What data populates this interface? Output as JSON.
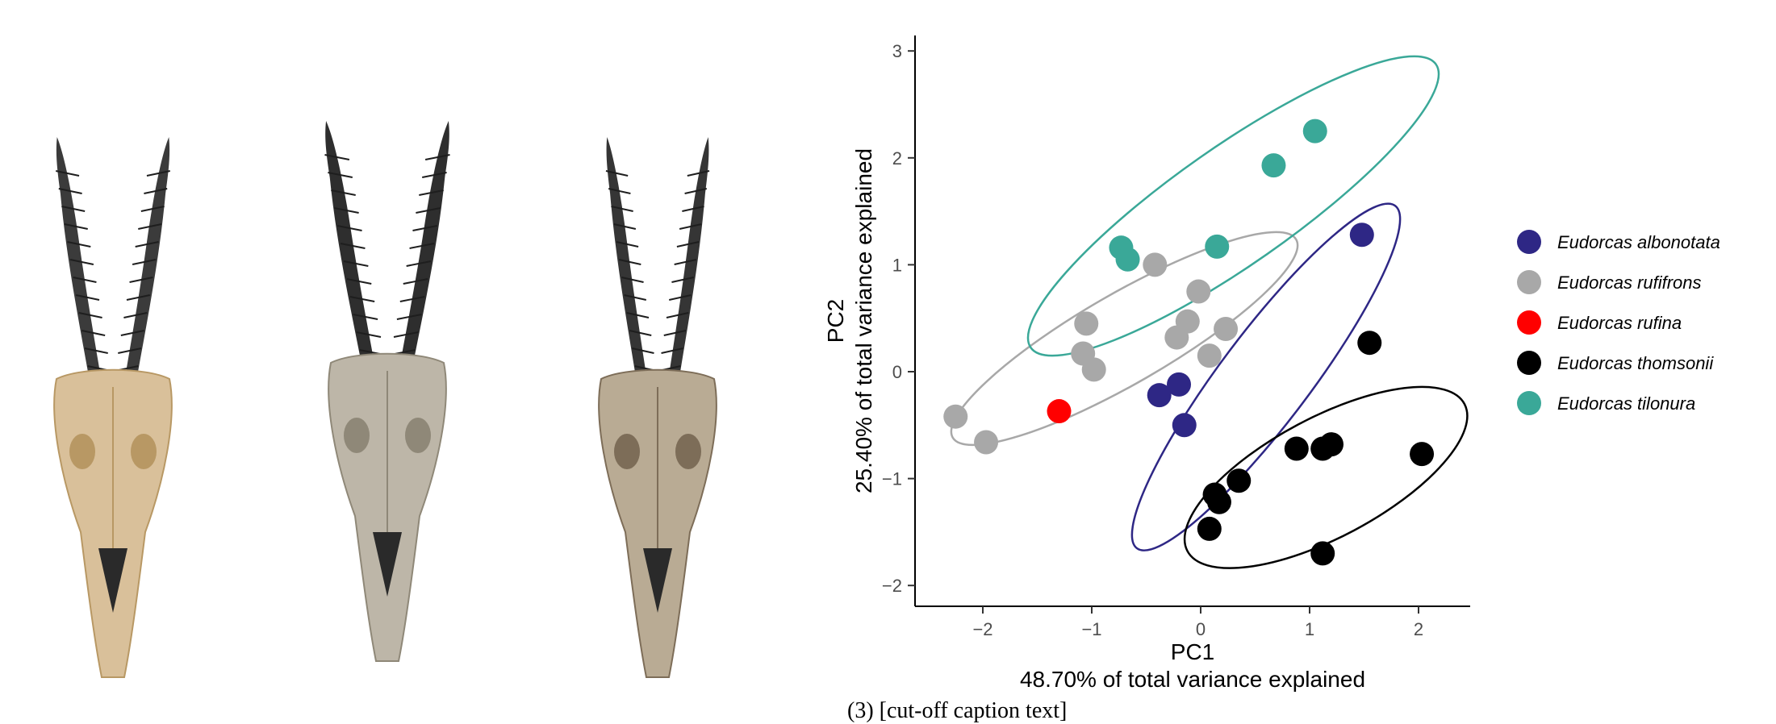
{
  "skulls": [
    {
      "name": "skull-1",
      "horn": "#3b3b3b",
      "bone": "#d9c09a",
      "shade": "#b89864"
    },
    {
      "name": "skull-2",
      "horn": "#2e2e2e",
      "bone": "#bdb6a8",
      "shade": "#8f8878"
    },
    {
      "name": "skull-3",
      "horn": "#353535",
      "bone": "#b9ab94",
      "shade": "#7d6d58"
    }
  ],
  "chart_data": {
    "type": "scatter",
    "title": "",
    "xlabel": "PC1",
    "xlabel_sub": "48.70% of total variance explained",
    "ylabel": "PC2",
    "ylabel_sub": "25.40% of total variance explained",
    "xlim": [
      -2.55,
      2.5
    ],
    "ylim": [
      -2.2,
      3.1
    ],
    "xticks": [
      -2,
      -1,
      0,
      1,
      2
    ],
    "yticks": [
      -2,
      -1,
      0,
      1,
      2,
      3
    ],
    "xtick_labels": [
      "−2",
      "−1",
      "0",
      "1",
      "2"
    ],
    "ytick_labels": [
      "−2",
      "−1",
      "0",
      "1",
      "2",
      "3"
    ],
    "grid": false,
    "legend_position": "right",
    "series": [
      {
        "name": "Eudorcas albonotata",
        "color": "#2e2785",
        "points": [
          [
            1.48,
            1.28
          ],
          [
            -0.2,
            -0.12
          ],
          [
            -0.38,
            -0.22
          ],
          [
            -0.15,
            -0.5
          ]
        ],
        "ellipse": {
          "cx": 0.6,
          "cy": -0.05,
          "rx": 1.97,
          "ry": 0.42,
          "angle": 53
        }
      },
      {
        "name": "Eudorcas rufifrons",
        "color": "#a8a8a8",
        "points": [
          [
            -0.42,
            1.0
          ],
          [
            -1.05,
            0.45
          ],
          [
            -0.02,
            0.75
          ],
          [
            -0.12,
            0.47
          ],
          [
            -0.22,
            0.32
          ],
          [
            0.23,
            0.4
          ],
          [
            -1.08,
            0.17
          ],
          [
            -0.98,
            0.02
          ],
          [
            0.08,
            0.15
          ],
          [
            -2.25,
            -0.42
          ],
          [
            -1.97,
            -0.66
          ]
        ],
        "ellipse": {
          "cx": -0.7,
          "cy": 0.31,
          "rx": 1.82,
          "ry": 0.42,
          "angle": 30
        }
      },
      {
        "name": "Eudorcas rufina",
        "color": "#ff0000",
        "points": [
          [
            -1.3,
            -0.37
          ]
        ],
        "ellipse": null
      },
      {
        "name": "Eudorcas thomsonii",
        "color": "#000000",
        "points": [
          [
            1.55,
            0.27
          ],
          [
            0.88,
            -0.72
          ],
          [
            1.12,
            -0.72
          ],
          [
            1.2,
            -0.68
          ],
          [
            2.03,
            -0.77
          ],
          [
            0.35,
            -1.02
          ],
          [
            0.13,
            -1.15
          ],
          [
            0.17,
            -1.22
          ],
          [
            0.08,
            -1.47
          ],
          [
            1.12,
            -1.7
          ]
        ],
        "ellipse": {
          "cx": 1.15,
          "cy": -0.99,
          "rx": 1.44,
          "ry": 0.56,
          "angle": 28
        }
      },
      {
        "name": "Eudorcas tilonura",
        "color": "#3aa898",
        "points": [
          [
            1.05,
            2.25
          ],
          [
            0.67,
            1.93
          ],
          [
            -0.73,
            1.16
          ],
          [
            -0.67,
            1.05
          ],
          [
            0.15,
            1.17
          ]
        ],
        "ellipse": {
          "cx": 0.3,
          "cy": 1.55,
          "rx": 2.27,
          "ry": 0.55,
          "angle": 35
        }
      }
    ]
  },
  "caption_fragment": "(3) [cut-off caption text]"
}
